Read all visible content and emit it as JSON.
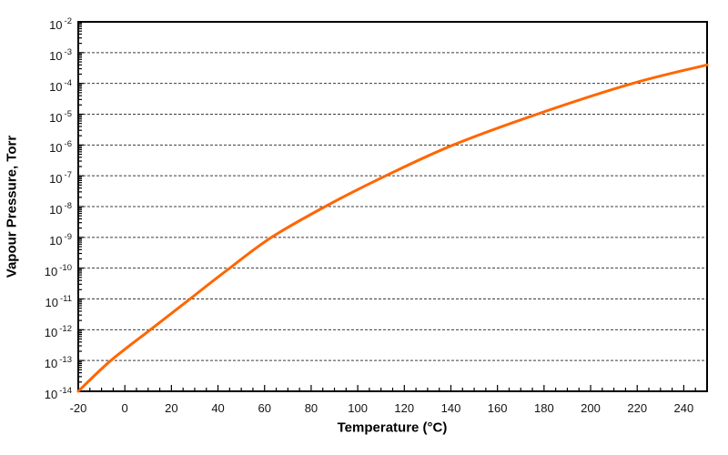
{
  "chart_data": {
    "type": "line",
    "title": "",
    "xlabel": "Temperature (°C)",
    "ylabel": "Vapour Pressure, Torr",
    "xlim": [
      -20,
      250
    ],
    "x_major_tick_step": 20,
    "x_minor_tick_step": 5,
    "x_tick_labels": [
      -20,
      0,
      20,
      40,
      60,
      80,
      100,
      120,
      140,
      160,
      180,
      200,
      220,
      240
    ],
    "y_scale": "log10",
    "y_unit": "Torr",
    "y_tick_exponents": [
      -2,
      -3,
      -4,
      -5,
      -6,
      -7,
      -8,
      -9,
      -10,
      -11,
      -12,
      -13,
      -14
    ],
    "ylim_exponents": [
      -14,
      -2
    ],
    "grid": {
      "horizontal": "dashed",
      "vertical": "none"
    },
    "legend": "none",
    "frame_color": "#000000",
    "text_color": "#141414",
    "series": [
      {
        "name": "vapour-pressure-curve",
        "color": "#FF6600",
        "points_t_torr": [
          [
            -20,
            1e-14
          ],
          [
            -6,
            1e-13
          ],
          [
            11,
            1e-12
          ],
          [
            28,
            1e-11
          ],
          [
            45,
            1e-10
          ],
          [
            63,
            1e-09
          ],
          [
            86,
            1e-08
          ],
          [
            112,
            1e-07
          ],
          [
            141,
            1e-06
          ],
          [
            177,
            1e-05
          ],
          [
            218,
            0.0001
          ],
          [
            250,
            0.0004
          ]
        ]
      }
    ]
  }
}
